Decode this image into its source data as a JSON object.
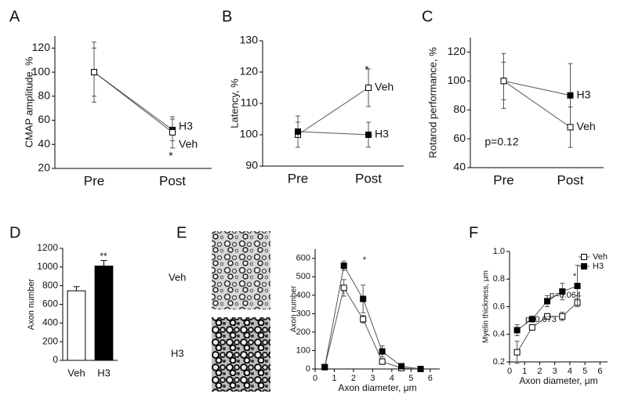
{
  "chart_data": [
    {
      "type": "line",
      "panel": "A",
      "ylabel": "CMAP amplitude, %",
      "categories": [
        "Pre",
        "Post"
      ],
      "ylim": [
        20,
        130
      ],
      "yticks": [
        20,
        40,
        60,
        80,
        100,
        120
      ],
      "series": [
        {
          "name": "H3",
          "color": "#000000",
          "values": [
            100,
            52
          ],
          "errors": [
            20,
            9
          ]
        },
        {
          "name": "Veh",
          "color": "#ffffff",
          "values": [
            100,
            50
          ],
          "errors": [
            25,
            13
          ]
        }
      ],
      "annotations": [
        "*"
      ]
    },
    {
      "type": "line",
      "panel": "B",
      "ylabel": "Latency, %",
      "categories": [
        "Pre",
        "Post"
      ],
      "ylim": [
        90,
        130
      ],
      "yticks": [
        90,
        100,
        110,
        120,
        130
      ],
      "series": [
        {
          "name": "Veh",
          "color": "#ffffff",
          "values": [
            100,
            115
          ],
          "errors": [
            4,
            6
          ]
        },
        {
          "name": "H3",
          "color": "#000000",
          "values": [
            101,
            100
          ],
          "errors": [
            5,
            4
          ]
        }
      ],
      "annotations": [
        "*"
      ]
    },
    {
      "type": "line",
      "panel": "C",
      "ylabel": "Rotarod performance, %",
      "categories": [
        "Pre",
        "Post"
      ],
      "ylim": [
        40,
        130
      ],
      "yticks": [
        40,
        60,
        80,
        100,
        120
      ],
      "series": [
        {
          "name": "H3",
          "color": "#000000",
          "values": [
            100,
            90
          ],
          "errors": [
            13,
            22
          ]
        },
        {
          "name": "Veh",
          "color": "#ffffff",
          "values": [
            100,
            68
          ],
          "errors": [
            19,
            14
          ]
        }
      ],
      "annotations": [
        "p=0.12"
      ]
    },
    {
      "type": "bar",
      "panel": "D",
      "ylabel": "Axon number",
      "categories": [
        "Veh",
        "H3"
      ],
      "values": [
        745,
        1010
      ],
      "errors": [
        45,
        60
      ],
      "colors": [
        "#ffffff",
        "#000000"
      ],
      "ylim": [
        0,
        1200
      ],
      "yticks": [
        0,
        200,
        400,
        600,
        800,
        1000,
        1200
      ],
      "annotations": [
        "**"
      ]
    },
    {
      "type": "line",
      "panel": "E",
      "image_labels": [
        "Veh",
        "H3"
      ],
      "xlabel": "Axon diameter, μm",
      "ylabel": "Axon number",
      "x": [
        0.5,
        1.5,
        2.5,
        3.5,
        4.5,
        5.5
      ],
      "xlim": [
        0,
        6.5
      ],
      "xticks": [
        0,
        1,
        2,
        3,
        4,
        5,
        6
      ],
      "ylim": [
        0,
        650
      ],
      "yticks": [
        0,
        100,
        200,
        300,
        400,
        500,
        600
      ],
      "series": [
        {
          "color": "#ffffff",
          "values": [
            10,
            440,
            270,
            40,
            5,
            0
          ],
          "errors": [
            0,
            45,
            20,
            15,
            0,
            0
          ]
        },
        {
          "color": "#000000",
          "values": [
            10,
            560,
            380,
            95,
            15,
            0
          ],
          "errors": [
            0,
            25,
            75,
            30,
            0,
            0
          ]
        }
      ],
      "annotations": [
        "*"
      ]
    },
    {
      "type": "line",
      "panel": "F",
      "xlabel": "Axon diameter, μm",
      "ylabel": "Myelin thickness, μm",
      "x": [
        0.5,
        1.5,
        2.5,
        3.5,
        4.5
      ],
      "xlim": [
        0,
        6.5
      ],
      "xticks": [
        0,
        1,
        2,
        3,
        4,
        5,
        6
      ],
      "ylim": [
        0.2,
        1.0
      ],
      "yticks": [
        0.2,
        0.4,
        0.6,
        0.8,
        {
          "value": 1,
          "label": "1.0"
        }
      ],
      "series": [
        {
          "name": "Veh",
          "color": "#ffffff",
          "values": [
            0.27,
            0.45,
            0.53,
            0.53,
            0.63
          ],
          "errors": [
            0.08,
            0.02,
            0.02,
            0.03,
            0.03
          ]
        },
        {
          "name": "H3",
          "color": "#000000",
          "values": [
            0.43,
            0.51,
            0.64,
            0.71,
            0.75
          ],
          "errors": [
            0.04,
            0.02,
            0.04,
            0.06,
            0.15
          ]
        }
      ],
      "legend": "upper right",
      "annotations": [
        "p=0.073",
        "p=0.064",
        "*"
      ]
    }
  ]
}
